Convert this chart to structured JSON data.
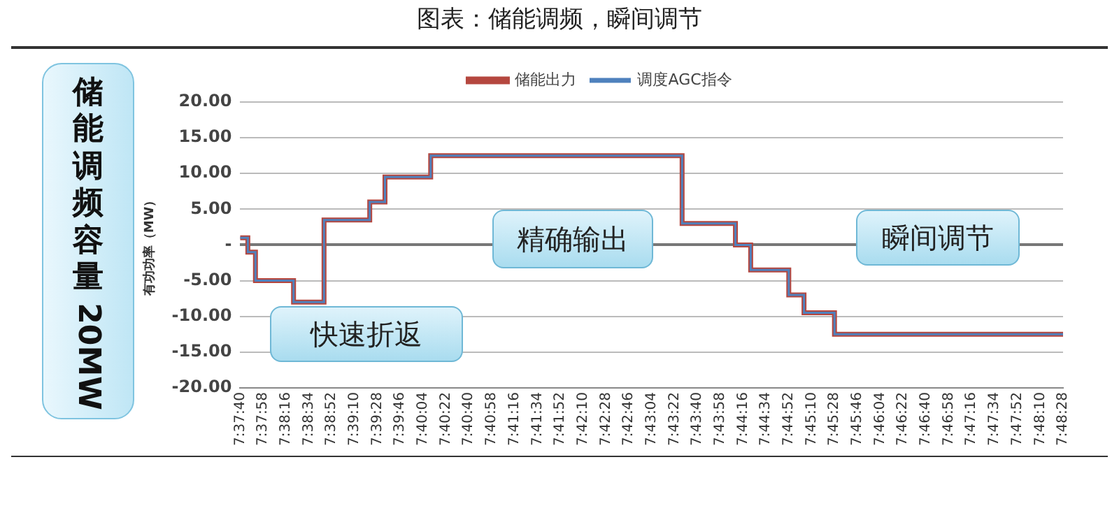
{
  "chart_data": {
    "type": "step",
    "title": "图表：储能调频，瞬间调节",
    "ylabel": "有功功率（MW）",
    "annotations": [
      "储能调频容量 20MW",
      "快速折返",
      "精确输出",
      "瞬间调节"
    ],
    "categories": [
      "7:37:40",
      null,
      null,
      "7:37:58",
      null,
      null,
      "7:38:16",
      null,
      null,
      "7:38:34",
      null,
      null,
      "7:38:52",
      null,
      null,
      "7:39:10",
      null,
      null,
      "7:39:28",
      null,
      null,
      "7:39:46",
      null,
      null,
      "7:40:04",
      null,
      null,
      "7:40:22",
      null,
      null,
      "7:40:40",
      null,
      null,
      "7:40:58",
      null,
      null,
      "7:41:16",
      null,
      null,
      "7:41:34",
      null,
      null,
      "7:41:52",
      null,
      null,
      "7:42:10",
      null,
      null,
      "7:42:28",
      null,
      null,
      "7:42:46",
      null,
      null,
      "7:43:04",
      null,
      null,
      "7:43:22",
      null,
      null,
      "7:43:40",
      null,
      null,
      "7:43:58",
      null,
      null,
      "7:44:16",
      null,
      null,
      "7:44:34",
      null,
      null,
      "7:44:52",
      null,
      null,
      "7:45:10",
      null,
      null,
      "7:45:28",
      null,
      null,
      "7:45:46",
      null,
      null,
      "7:46:04",
      null,
      null,
      "7:46:22",
      null,
      null,
      "7:46:40",
      null,
      null,
      "7:46:58",
      null,
      null,
      "7:47:16",
      null,
      null,
      "7:47:34",
      null,
      null,
      "7:47:52",
      null,
      null,
      "7:48:10",
      null,
      null,
      "7:48:28"
    ],
    "series": [
      {
        "name": "储能出力",
        "color": "#b5473f",
        "values": [
          1,
          1,
          -1,
          -5,
          -5,
          -5,
          -5,
          -5,
          -8,
          -8,
          -8,
          -8,
          3.5,
          3.5,
          3.5,
          3.5,
          3.5,
          3.5,
          6,
          6,
          9.5,
          9.5,
          9.5,
          9.5,
          9.5,
          9.5,
          12.5,
          12.5,
          12.5,
          12.5,
          12.5,
          12.5,
          12.5,
          12.5,
          12.5,
          12.5,
          12.5,
          12.5,
          12.5,
          12.5,
          12.5,
          12.5,
          12.5,
          12.5,
          12.5,
          12.5,
          12.5,
          12.5,
          12.5,
          12.5,
          12.5,
          12.5,
          12.5,
          12.5,
          12.5,
          12.5,
          12.5,
          12.5,
          12.5,
          3,
          3,
          3,
          3,
          3,
          3,
          3,
          0,
          0,
          -3.5,
          -3.5,
          -3.5,
          -3.5,
          -3.5,
          -7,
          -7,
          -9.5,
          -9.5,
          -9.5,
          -9.5,
          -12.5,
          -12.5,
          -12.5,
          -12.5,
          -12.5,
          -12.5,
          -12.5,
          -12.5,
          -12.5,
          -12.5,
          -12.5,
          -12.5,
          -12.5,
          -12.5,
          -12.5,
          -12.5,
          -12.5,
          -12.5,
          -12.5,
          -12.5,
          -12.5,
          -12.5,
          -12.5,
          -12.5,
          -12.5,
          -12.5,
          -12.5,
          -12.5,
          -12.5,
          -12.5
        ]
      },
      {
        "name": "调度AGC指令",
        "color": "#4f81bd",
        "values": [
          1,
          1,
          -1,
          -5,
          -5,
          -5,
          -5,
          -5,
          -8,
          -8,
          -8,
          -8,
          3.5,
          3.5,
          3.5,
          3.5,
          3.5,
          3.5,
          6,
          6,
          9.5,
          9.5,
          9.5,
          9.5,
          9.5,
          9.5,
          12.5,
          12.5,
          12.5,
          12.5,
          12.5,
          12.5,
          12.5,
          12.5,
          12.5,
          12.5,
          12.5,
          12.5,
          12.5,
          12.5,
          12.5,
          12.5,
          12.5,
          12.5,
          12.5,
          12.5,
          12.5,
          12.5,
          12.5,
          12.5,
          12.5,
          12.5,
          12.5,
          12.5,
          12.5,
          12.5,
          12.5,
          12.5,
          12.5,
          3,
          3,
          3,
          3,
          3,
          3,
          3,
          0,
          0,
          -3.5,
          -3.5,
          -3.5,
          -3.5,
          -3.5,
          -7,
          -7,
          -9.5,
          -9.5,
          -9.5,
          -9.5,
          -12.5,
          -12.5,
          -12.5,
          -12.5,
          -12.5,
          -12.5,
          -12.5,
          -12.5,
          -12.5,
          -12.5,
          -12.5,
          -12.5,
          -12.5,
          -12.5,
          -12.5,
          -12.5,
          -12.5,
          -12.5,
          -12.5,
          -12.5,
          -12.5,
          -12.5,
          -12.5,
          -12.5,
          -12.5,
          -12.5,
          -12.5,
          -12.5,
          -12.5,
          -12.5
        ]
      }
    ],
    "ylim": [
      -20,
      20
    ],
    "yticks": [
      {
        "value": -20,
        "label": "-20.00"
      },
      {
        "value": -15,
        "label": "-15.00"
      },
      {
        "value": -10,
        "label": "-10.00"
      },
      {
        "value": -5,
        "label": "-5.00"
      },
      {
        "value": 0,
        "label": "-"
      },
      {
        "value": 5,
        "label": "5.00"
      },
      {
        "value": 10,
        "label": "10.00"
      },
      {
        "value": 15,
        "label": "15.00"
      },
      {
        "value": 20,
        "label": "20.00"
      }
    ],
    "grid": "y",
    "legend": "top",
    "marker": "none",
    "line_style": "solid"
  }
}
